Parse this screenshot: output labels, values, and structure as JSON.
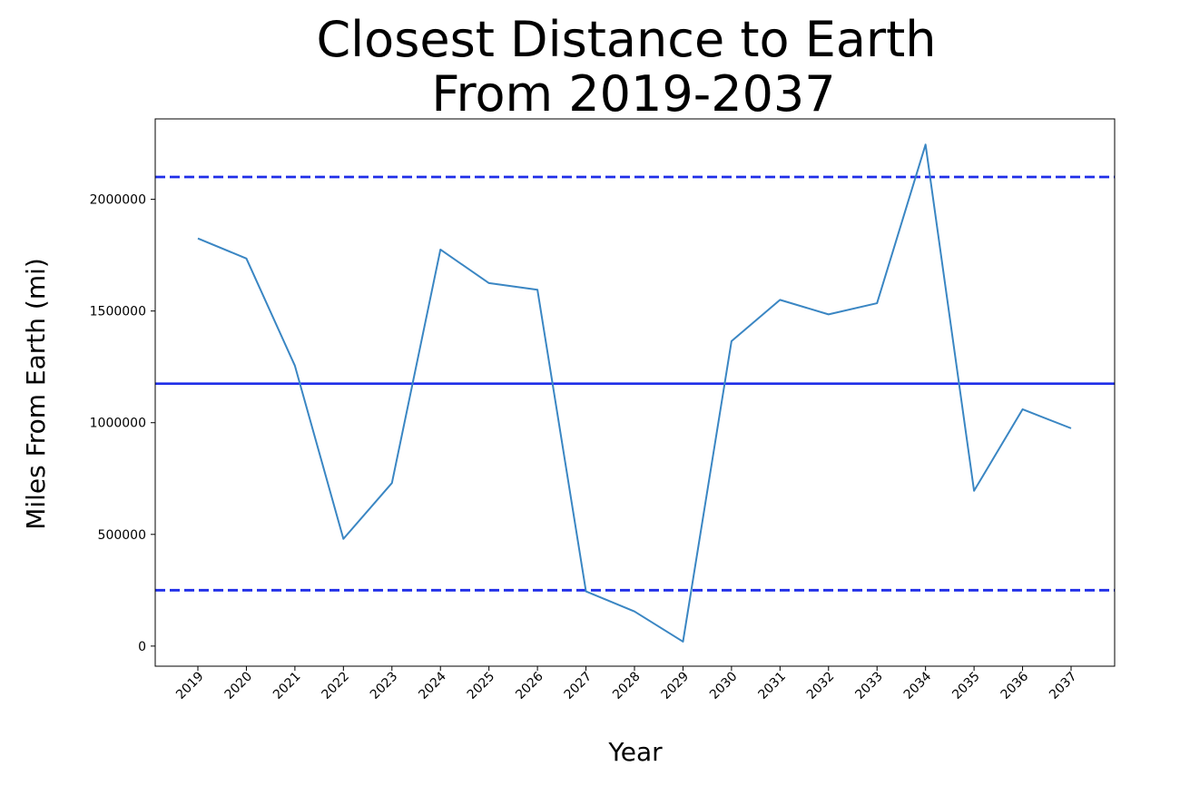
{
  "chart_data": {
    "type": "line",
    "title_lines": [
      "Closest Distance to Earth",
      "From 2019-2037"
    ],
    "xlabel": "Year",
    "ylabel": "Miles From Earth (mi)",
    "categories": [
      "2019",
      "2020",
      "2021",
      "2022",
      "2023",
      "2024",
      "2025",
      "2026",
      "2027",
      "2028",
      "2029",
      "2030",
      "2031",
      "2032",
      "2033",
      "2034",
      "2035",
      "2036",
      "2037"
    ],
    "series": [
      {
        "values": [
          1825000,
          1735000,
          1255000,
          480000,
          730000,
          1775000,
          1625000,
          1595000,
          245000,
          155000,
          20000,
          1365000,
          1550000,
          1485000,
          1535000,
          2245000,
          695000,
          1060000,
          975000
        ],
        "color": "#3a86c3"
      }
    ],
    "reference_lines": [
      {
        "y": 2100000,
        "style": "dashed",
        "color": "#1f2ee8"
      },
      {
        "y": 1175000,
        "style": "solid",
        "color": "#1f2ee8"
      },
      {
        "y": 250000,
        "style": "dashed",
        "color": "#1f2ee8"
      }
    ],
    "yticks": [
      0,
      500000,
      1000000,
      1500000,
      2000000
    ],
    "ytick_labels": [
      "0",
      "500000",
      "1000000",
      "1500000",
      "2000000"
    ],
    "ylim": [
      -90000,
      2360000
    ],
    "grid": false
  }
}
